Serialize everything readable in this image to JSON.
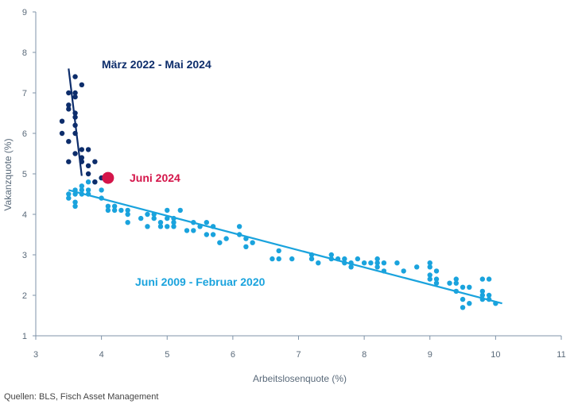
{
  "chart_data": {
    "type": "scatter",
    "xlabel": "Arbeitslosenquote (%)",
    "ylabel": "Vakanzquote (%)",
    "xlim": [
      3,
      11
    ],
    "ylim": [
      1,
      9
    ],
    "x_ticks": [
      3,
      4,
      5,
      6,
      7,
      8,
      9,
      10,
      11
    ],
    "y_ticks": [
      1,
      2,
      3,
      4,
      5,
      6,
      7,
      8,
      9
    ],
    "grid": false,
    "colors": {
      "recent": "#0d2d6b",
      "historic": "#1aa3dd",
      "highlight": "#d4154a",
      "axis": "#7f93a8"
    },
    "series": [
      {
        "name": "März 2022 - Mai 2024",
        "color": "#0d2d6b",
        "points": [
          [
            3.4,
            6.3
          ],
          [
            3.4,
            6.0
          ],
          [
            3.5,
            7.0
          ],
          [
            3.5,
            6.7
          ],
          [
            3.5,
            6.6
          ],
          [
            3.5,
            5.8
          ],
          [
            3.5,
            5.3
          ],
          [
            3.6,
            7.4
          ],
          [
            3.6,
            7.0
          ],
          [
            3.6,
            6.9
          ],
          [
            3.6,
            6.5
          ],
          [
            3.6,
            6.4
          ],
          [
            3.6,
            6.2
          ],
          [
            3.6,
            6.0
          ],
          [
            3.6,
            5.5
          ],
          [
            3.7,
            7.2
          ],
          [
            3.7,
            5.6
          ],
          [
            3.7,
            5.4
          ],
          [
            3.7,
            5.3
          ],
          [
            3.8,
            5.6
          ],
          [
            3.8,
            5.2
          ],
          [
            3.8,
            5.0
          ],
          [
            3.9,
            5.3
          ],
          [
            3.9,
            4.8
          ],
          [
            4.0,
            4.9
          ]
        ],
        "trend": [
          [
            3.5,
            7.6
          ],
          [
            3.7,
            4.95
          ]
        ]
      },
      {
        "name": "Juni 2009 - Februar 2020",
        "color": "#1aa3dd",
        "points": [
          [
            3.5,
            4.5
          ],
          [
            3.5,
            4.4
          ],
          [
            3.6,
            4.6
          ],
          [
            3.6,
            4.5
          ],
          [
            3.6,
            4.3
          ],
          [
            3.6,
            4.2
          ],
          [
            3.7,
            4.7
          ],
          [
            3.7,
            4.6
          ],
          [
            3.7,
            4.5
          ],
          [
            3.8,
            4.8
          ],
          [
            3.8,
            4.6
          ],
          [
            3.8,
            4.5
          ],
          [
            3.9,
            4.8
          ],
          [
            4.0,
            4.9
          ],
          [
            4.0,
            4.6
          ],
          [
            4.0,
            4.4
          ],
          [
            4.1,
            4.2
          ],
          [
            4.1,
            4.1
          ],
          [
            4.2,
            4.2
          ],
          [
            4.2,
            4.1
          ],
          [
            4.3,
            4.1
          ],
          [
            4.4,
            4.1
          ],
          [
            4.4,
            4.0
          ],
          [
            4.4,
            3.8
          ],
          [
            4.6,
            3.9
          ],
          [
            4.7,
            4.0
          ],
          [
            4.7,
            3.7
          ],
          [
            4.8,
            4.0
          ],
          [
            4.8,
            3.9
          ],
          [
            4.9,
            3.8
          ],
          [
            4.9,
            3.7
          ],
          [
            5.0,
            4.1
          ],
          [
            5.0,
            3.9
          ],
          [
            5.0,
            3.7
          ],
          [
            5.1,
            3.9
          ],
          [
            5.1,
            3.8
          ],
          [
            5.1,
            3.7
          ],
          [
            5.2,
            4.1
          ],
          [
            5.3,
            3.6
          ],
          [
            5.4,
            3.8
          ],
          [
            5.4,
            3.6
          ],
          [
            5.5,
            3.7
          ],
          [
            5.6,
            3.8
          ],
          [
            5.6,
            3.5
          ],
          [
            5.7,
            3.7
          ],
          [
            5.7,
            3.5
          ],
          [
            5.8,
            3.3
          ],
          [
            5.9,
            3.4
          ],
          [
            6.1,
            3.7
          ],
          [
            6.1,
            3.5
          ],
          [
            6.2,
            3.4
          ],
          [
            6.2,
            3.2
          ],
          [
            6.3,
            3.3
          ],
          [
            6.6,
            2.9
          ],
          [
            6.7,
            3.1
          ],
          [
            6.7,
            2.9
          ],
          [
            6.9,
            2.9
          ],
          [
            7.2,
            3.0
          ],
          [
            7.2,
            2.9
          ],
          [
            7.3,
            2.8
          ],
          [
            7.5,
            3.0
          ],
          [
            7.5,
            2.9
          ],
          [
            7.6,
            2.9
          ],
          [
            7.7,
            2.9
          ],
          [
            7.7,
            2.8
          ],
          [
            7.8,
            2.8
          ],
          [
            7.8,
            2.7
          ],
          [
            7.9,
            2.9
          ],
          [
            8.0,
            2.8
          ],
          [
            8.1,
            2.8
          ],
          [
            8.2,
            2.9
          ],
          [
            8.2,
            2.8
          ],
          [
            8.2,
            2.7
          ],
          [
            8.3,
            2.8
          ],
          [
            8.3,
            2.6
          ],
          [
            8.5,
            2.8
          ],
          [
            8.6,
            2.6
          ],
          [
            8.8,
            2.7
          ],
          [
            9.0,
            2.8
          ],
          [
            9.0,
            2.7
          ],
          [
            9.0,
            2.5
          ],
          [
            9.0,
            2.4
          ],
          [
            9.1,
            2.6
          ],
          [
            9.1,
            2.4
          ],
          [
            9.1,
            2.3
          ],
          [
            9.3,
            2.3
          ],
          [
            9.4,
            2.4
          ],
          [
            9.4,
            2.3
          ],
          [
            9.4,
            2.1
          ],
          [
            9.5,
            2.2
          ],
          [
            9.5,
            1.9
          ],
          [
            9.5,
            1.7
          ],
          [
            9.6,
            2.2
          ],
          [
            9.6,
            1.8
          ],
          [
            9.8,
            2.4
          ],
          [
            9.8,
            2.1
          ],
          [
            9.8,
            2.0
          ],
          [
            9.8,
            1.9
          ],
          [
            9.9,
            2.4
          ],
          [
            9.9,
            2.0
          ],
          [
            9.9,
            1.9
          ],
          [
            10.0,
            1.8
          ]
        ],
        "trend": [
          [
            3.5,
            4.6
          ],
          [
            10.1,
            1.8
          ]
        ]
      }
    ],
    "highlight": {
      "label": "Juni 2024",
      "x": 4.1,
      "y": 4.9
    },
    "annotations": [
      {
        "text": "März 2022 - Mai 2024",
        "series": 0
      },
      {
        "text": "Juni 2009 - Februar 2020",
        "series": 1
      },
      {
        "text": "Juni 2024",
        "series": "highlight"
      }
    ]
  },
  "source": "Quellen: BLS, Fisch Asset Management"
}
